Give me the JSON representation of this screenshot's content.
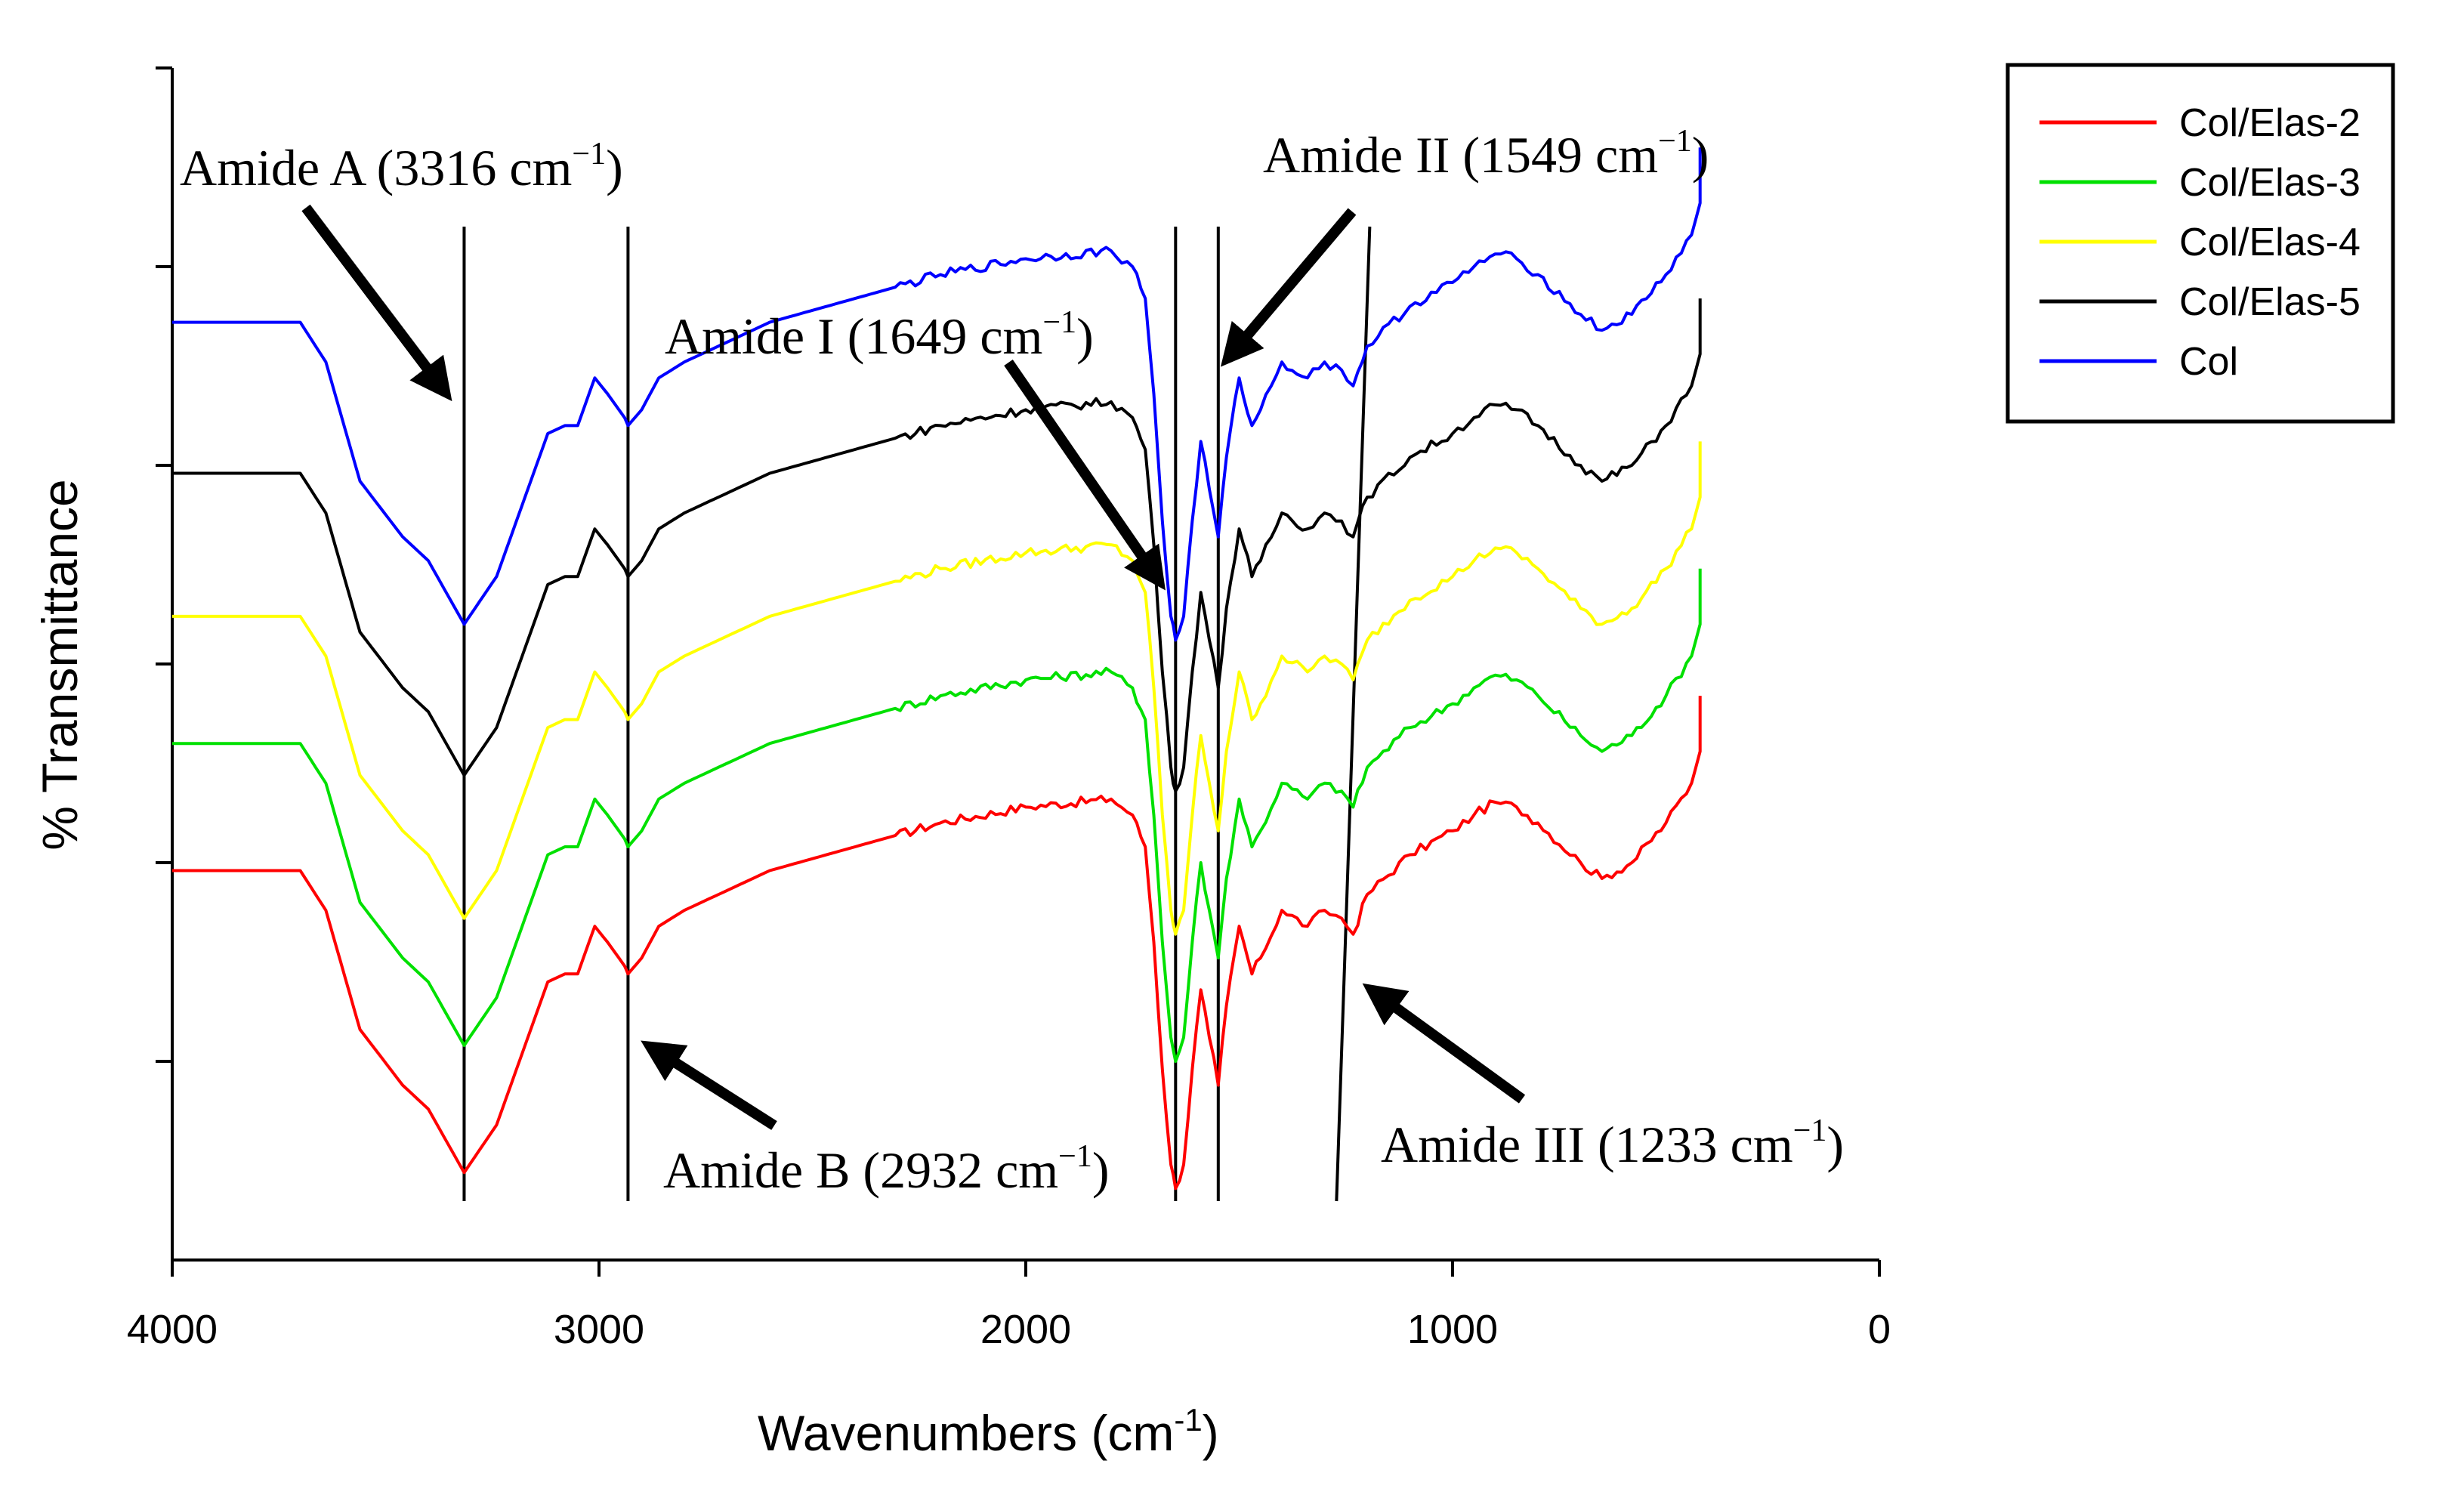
{
  "chart_data": {
    "type": "line",
    "title": "",
    "xlabel": "Wavenumbers (cm",
    "xlabel_sup": "-1",
    "xlabel_close": ")",
    "ylabel": "% Transmittance",
    "xlim": [
      4000,
      0
    ],
    "x_ticks": [
      4000,
      3000,
      2000,
      1000,
      0
    ],
    "x_tick_labels": [
      "4000",
      "3000",
      "2000",
      "1000",
      "0"
    ],
    "y_ticks_count": 6,
    "grid": false,
    "legend_position": "top-right, outside plot",
    "series": [
      {
        "name": "Col/Elas-2",
        "color": "#ff0000",
        "offset": 0,
        "points": [
          [
            4000,
            5.45
          ],
          [
            3700,
            5.45
          ],
          [
            3640,
            5.2
          ],
          [
            3560,
            4.45
          ],
          [
            3460,
            4.1
          ],
          [
            3400,
            3.95
          ],
          [
            3316,
            3.55
          ],
          [
            3240,
            3.85
          ],
          [
            3160,
            4.45
          ],
          [
            3120,
            4.75
          ],
          [
            3080,
            4.8
          ],
          [
            3050,
            4.8
          ],
          [
            3010,
            5.1
          ],
          [
            2980,
            5.0
          ],
          [
            2940,
            4.85
          ],
          [
            2932,
            4.8
          ],
          [
            2900,
            4.9
          ],
          [
            2860,
            5.1
          ],
          [
            2800,
            5.2
          ],
          [
            2600,
            5.45
          ],
          [
            2400,
            5.6
          ],
          [
            2200,
            5.75
          ],
          [
            2000,
            5.85
          ],
          [
            1800,
            5.9
          ],
          [
            1750,
            5.8
          ],
          [
            1720,
            5.6
          ],
          [
            1700,
            5.0
          ],
          [
            1680,
            4.2
          ],
          [
            1660,
            3.6
          ],
          [
            1649,
            3.45
          ],
          [
            1630,
            3.6
          ],
          [
            1610,
            4.2
          ],
          [
            1590,
            4.7
          ],
          [
            1570,
            4.4
          ],
          [
            1549,
            4.1
          ],
          [
            1530,
            4.6
          ],
          [
            1500,
            5.1
          ],
          [
            1470,
            4.8
          ],
          [
            1450,
            4.9
          ],
          [
            1400,
            5.2
          ],
          [
            1340,
            5.1
          ],
          [
            1300,
            5.2
          ],
          [
            1260,
            5.15
          ],
          [
            1233,
            5.05
          ],
          [
            1200,
            5.3
          ],
          [
            1100,
            5.55
          ],
          [
            1000,
            5.7
          ],
          [
            950,
            5.8
          ],
          [
            900,
            5.88
          ],
          [
            850,
            5.85
          ],
          [
            800,
            5.75
          ],
          [
            700,
            5.5
          ],
          [
            650,
            5.4
          ],
          [
            580,
            5.5
          ],
          [
            500,
            5.75
          ],
          [
            440,
            6.0
          ],
          [
            420,
            6.2
          ],
          [
            420,
            6.55
          ]
        ]
      },
      {
        "name": "Col/Elas-3",
        "color": "#00e000",
        "offset": 0.8,
        "points": [
          [
            4000,
            5.45
          ],
          [
            3700,
            5.45
          ],
          [
            3640,
            5.2
          ],
          [
            3560,
            4.45
          ],
          [
            3460,
            4.1
          ],
          [
            3400,
            3.95
          ],
          [
            3316,
            3.55
          ],
          [
            3240,
            3.85
          ],
          [
            3160,
            4.45
          ],
          [
            3120,
            4.75
          ],
          [
            3080,
            4.8
          ],
          [
            3050,
            4.8
          ],
          [
            3010,
            5.1
          ],
          [
            2980,
            5.0
          ],
          [
            2940,
            4.85
          ],
          [
            2932,
            4.8
          ],
          [
            2900,
            4.9
          ],
          [
            2860,
            5.1
          ],
          [
            2800,
            5.2
          ],
          [
            2600,
            5.45
          ],
          [
            2400,
            5.6
          ],
          [
            2200,
            5.75
          ],
          [
            2000,
            5.85
          ],
          [
            1800,
            5.9
          ],
          [
            1750,
            5.8
          ],
          [
            1720,
            5.6
          ],
          [
            1700,
            5.0
          ],
          [
            1680,
            4.2
          ],
          [
            1660,
            3.6
          ],
          [
            1649,
            3.45
          ],
          [
            1630,
            3.6
          ],
          [
            1610,
            4.2
          ],
          [
            1590,
            4.7
          ],
          [
            1570,
            4.4
          ],
          [
            1549,
            4.1
          ],
          [
            1530,
            4.6
          ],
          [
            1500,
            5.1
          ],
          [
            1470,
            4.8
          ],
          [
            1450,
            4.9
          ],
          [
            1400,
            5.2
          ],
          [
            1340,
            5.1
          ],
          [
            1300,
            5.2
          ],
          [
            1260,
            5.15
          ],
          [
            1233,
            5.05
          ],
          [
            1200,
            5.3
          ],
          [
            1100,
            5.55
          ],
          [
            1000,
            5.7
          ],
          [
            950,
            5.8
          ],
          [
            900,
            5.88
          ],
          [
            850,
            5.85
          ],
          [
            800,
            5.75
          ],
          [
            700,
            5.5
          ],
          [
            650,
            5.4
          ],
          [
            580,
            5.5
          ],
          [
            500,
            5.75
          ],
          [
            440,
            6.0
          ],
          [
            420,
            6.2
          ],
          [
            420,
            6.55
          ]
        ]
      },
      {
        "name": "Col/Elas-4",
        "color": "#ffff00",
        "offset": 1.6,
        "points": [
          [
            4000,
            5.45
          ],
          [
            3700,
            5.45
          ],
          [
            3640,
            5.2
          ],
          [
            3560,
            4.45
          ],
          [
            3460,
            4.1
          ],
          [
            3400,
            3.95
          ],
          [
            3316,
            3.55
          ],
          [
            3240,
            3.85
          ],
          [
            3160,
            4.45
          ],
          [
            3120,
            4.75
          ],
          [
            3080,
            4.8
          ],
          [
            3050,
            4.8
          ],
          [
            3010,
            5.1
          ],
          [
            2980,
            5.0
          ],
          [
            2940,
            4.85
          ],
          [
            2932,
            4.8
          ],
          [
            2900,
            4.9
          ],
          [
            2860,
            5.1
          ],
          [
            2800,
            5.2
          ],
          [
            2600,
            5.45
          ],
          [
            2400,
            5.6
          ],
          [
            2200,
            5.75
          ],
          [
            2000,
            5.85
          ],
          [
            1800,
            5.9
          ],
          [
            1750,
            5.8
          ],
          [
            1720,
            5.6
          ],
          [
            1700,
            5.0
          ],
          [
            1680,
            4.2
          ],
          [
            1660,
            3.6
          ],
          [
            1649,
            3.45
          ],
          [
            1630,
            3.6
          ],
          [
            1610,
            4.2
          ],
          [
            1590,
            4.7
          ],
          [
            1570,
            4.4
          ],
          [
            1549,
            4.1
          ],
          [
            1530,
            4.6
          ],
          [
            1500,
            5.1
          ],
          [
            1470,
            4.8
          ],
          [
            1450,
            4.9
          ],
          [
            1400,
            5.2
          ],
          [
            1340,
            5.1
          ],
          [
            1300,
            5.2
          ],
          [
            1260,
            5.15
          ],
          [
            1233,
            5.05
          ],
          [
            1200,
            5.3
          ],
          [
            1100,
            5.55
          ],
          [
            1000,
            5.7
          ],
          [
            950,
            5.8
          ],
          [
            900,
            5.88
          ],
          [
            850,
            5.85
          ],
          [
            800,
            5.75
          ],
          [
            700,
            5.5
          ],
          [
            650,
            5.4
          ],
          [
            580,
            5.5
          ],
          [
            500,
            5.75
          ],
          [
            440,
            6.0
          ],
          [
            420,
            6.2
          ],
          [
            420,
            6.55
          ]
        ]
      },
      {
        "name": "Col/Elas-5",
        "color": "#000000",
        "offset": 2.5,
        "points": [
          [
            4000,
            5.45
          ],
          [
            3700,
            5.45
          ],
          [
            3640,
            5.2
          ],
          [
            3560,
            4.45
          ],
          [
            3460,
            4.1
          ],
          [
            3400,
            3.95
          ],
          [
            3316,
            3.55
          ],
          [
            3240,
            3.85
          ],
          [
            3160,
            4.45
          ],
          [
            3120,
            4.75
          ],
          [
            3080,
            4.8
          ],
          [
            3050,
            4.8
          ],
          [
            3010,
            5.1
          ],
          [
            2980,
            5.0
          ],
          [
            2940,
            4.85
          ],
          [
            2932,
            4.8
          ],
          [
            2900,
            4.9
          ],
          [
            2860,
            5.1
          ],
          [
            2800,
            5.2
          ],
          [
            2600,
            5.45
          ],
          [
            2400,
            5.6
          ],
          [
            2200,
            5.75
          ],
          [
            2000,
            5.85
          ],
          [
            1800,
            5.9
          ],
          [
            1750,
            5.8
          ],
          [
            1720,
            5.6
          ],
          [
            1700,
            5.0
          ],
          [
            1680,
            4.2
          ],
          [
            1660,
            3.6
          ],
          [
            1649,
            3.45
          ],
          [
            1630,
            3.6
          ],
          [
            1610,
            4.2
          ],
          [
            1590,
            4.7
          ],
          [
            1570,
            4.4
          ],
          [
            1549,
            4.1
          ],
          [
            1530,
            4.6
          ],
          [
            1500,
            5.1
          ],
          [
            1470,
            4.8
          ],
          [
            1450,
            4.9
          ],
          [
            1400,
            5.2
          ],
          [
            1340,
            5.1
          ],
          [
            1300,
            5.2
          ],
          [
            1260,
            5.15
          ],
          [
            1233,
            5.05
          ],
          [
            1200,
            5.3
          ],
          [
            1100,
            5.55
          ],
          [
            1000,
            5.7
          ],
          [
            950,
            5.8
          ],
          [
            900,
            5.88
          ],
          [
            850,
            5.85
          ],
          [
            800,
            5.75
          ],
          [
            700,
            5.5
          ],
          [
            650,
            5.4
          ],
          [
            580,
            5.5
          ],
          [
            500,
            5.75
          ],
          [
            440,
            6.0
          ],
          [
            420,
            6.2
          ],
          [
            420,
            6.55
          ]
        ]
      },
      {
        "name": "Col",
        "color": "#0000ff",
        "offset": 3.45,
        "points": [
          [
            4000,
            5.45
          ],
          [
            3700,
            5.45
          ],
          [
            3640,
            5.2
          ],
          [
            3560,
            4.45
          ],
          [
            3460,
            4.1
          ],
          [
            3400,
            3.95
          ],
          [
            3316,
            3.55
          ],
          [
            3240,
            3.85
          ],
          [
            3160,
            4.45
          ],
          [
            3120,
            4.75
          ],
          [
            3080,
            4.8
          ],
          [
            3050,
            4.8
          ],
          [
            3010,
            5.1
          ],
          [
            2980,
            5.0
          ],
          [
            2940,
            4.85
          ],
          [
            2932,
            4.8
          ],
          [
            2900,
            4.9
          ],
          [
            2860,
            5.1
          ],
          [
            2800,
            5.2
          ],
          [
            2600,
            5.45
          ],
          [
            2400,
            5.6
          ],
          [
            2200,
            5.75
          ],
          [
            2000,
            5.85
          ],
          [
            1800,
            5.9
          ],
          [
            1750,
            5.8
          ],
          [
            1720,
            5.6
          ],
          [
            1700,
            5.0
          ],
          [
            1680,
            4.2
          ],
          [
            1660,
            3.6
          ],
          [
            1649,
            3.45
          ],
          [
            1630,
            3.6
          ],
          [
            1610,
            4.2
          ],
          [
            1590,
            4.7
          ],
          [
            1570,
            4.4
          ],
          [
            1549,
            4.1
          ],
          [
            1530,
            4.6
          ],
          [
            1500,
            5.1
          ],
          [
            1470,
            4.8
          ],
          [
            1450,
            4.9
          ],
          [
            1400,
            5.2
          ],
          [
            1340,
            5.1
          ],
          [
            1300,
            5.2
          ],
          [
            1260,
            5.15
          ],
          [
            1233,
            5.05
          ],
          [
            1200,
            5.3
          ],
          [
            1100,
            5.55
          ],
          [
            1000,
            5.7
          ],
          [
            950,
            5.8
          ],
          [
            900,
            5.88
          ],
          [
            850,
            5.85
          ],
          [
            800,
            5.75
          ],
          [
            700,
            5.5
          ],
          [
            650,
            5.4
          ],
          [
            580,
            5.5
          ],
          [
            500,
            5.75
          ],
          [
            440,
            6.0
          ],
          [
            420,
            6.2
          ],
          [
            420,
            6.55
          ]
        ]
      }
    ],
    "reference_lines": [
      {
        "name": "amide-a-line",
        "x": 3316
      },
      {
        "name": "amide-b-line",
        "x": 2932
      },
      {
        "name": "amide-i-line",
        "x": 1649
      },
      {
        "name": "amide-ii-line",
        "x": 1549
      },
      {
        "name": "amide-iii-line",
        "x": 1233
      }
    ],
    "annotations": [
      {
        "name": "amide-a",
        "prefix": "Amide A (3316 cm",
        "sup": "−1",
        "suffix": ")",
        "x": 3316
      },
      {
        "name": "amide-b",
        "prefix": "Amide B (2932 cm",
        "sup": "−1",
        "suffix": ")",
        "x": 2932
      },
      {
        "name": "amide-i",
        "prefix": "Amide I (1649 cm",
        "sup": "−1",
        "suffix": ")",
        "x": 1649
      },
      {
        "name": "amide-ii",
        "prefix": "Amide II (1549 cm",
        "sup": "−1",
        "suffix": ")",
        "x": 1549
      },
      {
        "name": "amide-iii",
        "prefix": "Amide III (1233 cm",
        "sup": "−1",
        "suffix": ")",
        "x": 1233
      }
    ]
  }
}
